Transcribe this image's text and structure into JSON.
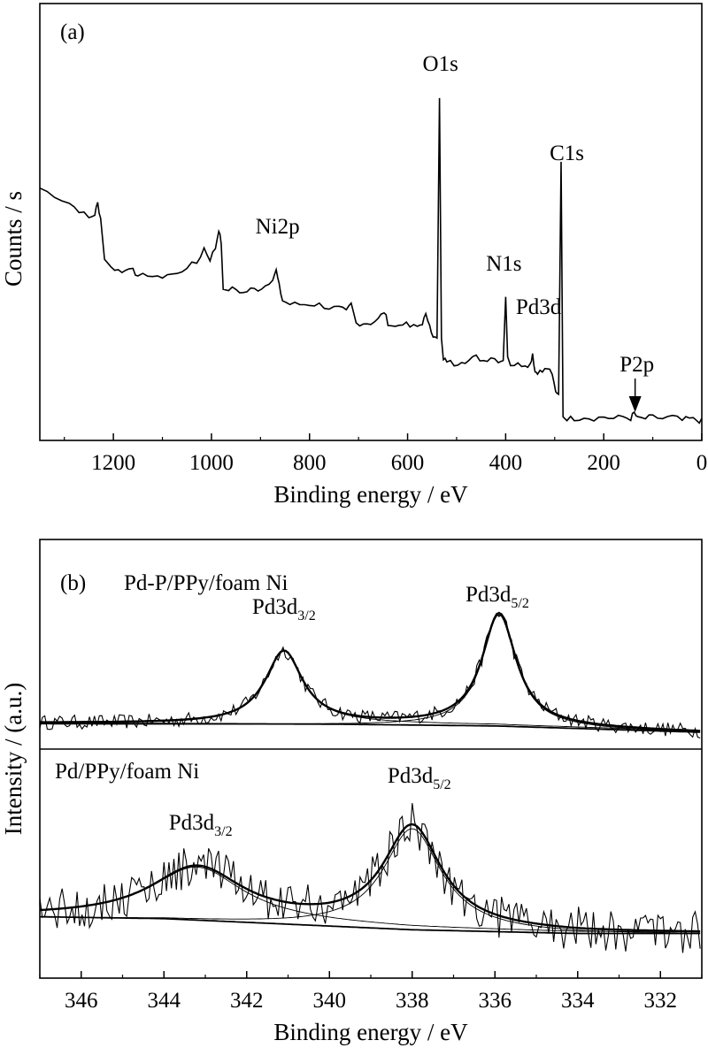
{
  "chart_data": [
    {
      "panel_label": "(a)",
      "type": "line",
      "xlabel": "Binding energy / eV",
      "ylabel": "Counts / s",
      "xlim": [
        1350,
        0
      ],
      "x_reversed": true,
      "x_ticks": [
        "1200",
        "1000",
        "800",
        "600",
        "400",
        "200",
        "0"
      ],
      "y_ticks_shown": false,
      "y_range_relative": [
        0,
        100
      ],
      "series": [
        {
          "points": [
            [
              1350,
              64
            ],
            [
              1320,
              62
            ],
            [
              1290,
              60
            ],
            [
              1270,
              58
            ],
            [
              1250,
              56
            ],
            [
              1238,
              57
            ],
            [
              1232,
              60
            ],
            [
              1226,
              56
            ],
            [
              1218,
              45
            ],
            [
              1205,
              43
            ],
            [
              1190,
              42
            ],
            [
              1175,
              42
            ],
            [
              1160,
              43
            ],
            [
              1150,
              40
            ],
            [
              1130,
              41
            ],
            [
              1110,
              40
            ],
            [
              1090,
              41
            ],
            [
              1070,
              41
            ],
            [
              1050,
              43
            ],
            [
              1030,
              44
            ],
            [
              1015,
              48
            ],
            [
              1003,
              45
            ],
            [
              992,
              48
            ],
            [
              985,
              53
            ],
            [
              980,
              49
            ],
            [
              976,
              37
            ],
            [
              965,
              37
            ],
            [
              950,
              37
            ],
            [
              935,
              36
            ],
            [
              920,
              37
            ],
            [
              905,
              37
            ],
            [
              890,
              38
            ],
            [
              875,
              40
            ],
            [
              868,
              42
            ],
            [
              862,
              38
            ],
            [
              855,
              34
            ],
            [
              840,
              33
            ],
            [
              820,
              33
            ],
            [
              800,
              33
            ],
            [
              780,
              33
            ],
            [
              760,
              32
            ],
            [
              740,
              32
            ],
            [
              725,
              31
            ],
            [
              715,
              33
            ],
            [
              705,
              28
            ],
            [
              690,
              28
            ],
            [
              675,
              28
            ],
            [
              660,
              29
            ],
            [
              648,
              31
            ],
            [
              640,
              28
            ],
            [
              625,
              27
            ],
            [
              610,
              28
            ],
            [
              595,
              27
            ],
            [
              580,
              27
            ],
            [
              570,
              28
            ],
            [
              563,
              30
            ],
            [
              555,
              28
            ],
            [
              548,
              24
            ],
            [
              540,
              24
            ],
            [
              535,
              88
            ],
            [
              531,
              24
            ],
            [
              527,
              18
            ],
            [
              520,
              18
            ],
            [
              505,
              17
            ],
            [
              490,
              18
            ],
            [
              475,
              18
            ],
            [
              460,
              19
            ],
            [
              445,
              18
            ],
            [
              430,
              19
            ],
            [
              415,
              18
            ],
            [
              405,
              18
            ],
            [
              400,
              35
            ],
            [
              396,
              19
            ],
            [
              390,
              17
            ],
            [
              375,
              17
            ],
            [
              360,
              17
            ],
            [
              350,
              17
            ],
            [
              345,
              20
            ],
            [
              340,
              15
            ],
            [
              335,
              15
            ],
            [
              325,
              15
            ],
            [
              315,
              16
            ],
            [
              305,
              14
            ],
            [
              298,
              10
            ],
            [
              292,
              9
            ],
            [
              287,
              71
            ],
            [
              283,
              3
            ],
            [
              275,
              2.5
            ],
            [
              260,
              2.5
            ],
            [
              240,
              3
            ],
            [
              220,
              2.5
            ],
            [
              200,
              3
            ],
            [
              180,
              2.5
            ],
            [
              160,
              3
            ],
            [
              145,
              2.5
            ],
            [
              138,
              4
            ],
            [
              130,
              2.5
            ],
            [
              115,
              2.5
            ],
            [
              100,
              3
            ],
            [
              80,
              2.5
            ],
            [
              60,
              3
            ],
            [
              40,
              2
            ],
            [
              25,
              2.5
            ],
            [
              10,
              2
            ],
            [
              0,
              2
            ]
          ]
        }
      ],
      "annotations": [
        {
          "text": "O1s",
          "x": 533
        },
        {
          "text": "C1s",
          "x": 286
        },
        {
          "text": "Ni2p",
          "x": 858
        },
        {
          "text": "N1s",
          "x": 400
        },
        {
          "text": "Pd3d",
          "x": 340
        },
        {
          "text": "P2p",
          "x": 136,
          "arrow": true
        }
      ]
    },
    {
      "panel_label": "(b)",
      "type": "line",
      "xlabel": "Binding energy / eV",
      "ylabel": "Intensity / (a.u.)",
      "xlim": [
        347,
        331
      ],
      "x_reversed": true,
      "x_ticks": [
        "346",
        "344",
        "342",
        "340",
        "338",
        "336",
        "334",
        "332"
      ],
      "y_ticks_shown": false,
      "subpanels": [
        {
          "name": "Pd-P/PPy/foam Ni",
          "peaks": [
            {
              "label_main": "Pd3d",
              "label_sub": "3/2",
              "center": 341.1,
              "height": 40,
              "width": 0.55
            },
            {
              "label_main": "Pd3d",
              "label_sub": "5/2",
              "center": 335.9,
              "height": 62,
              "width": 0.5
            }
          ],
          "background": [
            [
              347,
              5
            ],
            [
              340,
              4.5
            ],
            [
              336,
              3.5
            ],
            [
              331,
              0
            ]
          ]
        },
        {
          "name": "Pd/PPy/foam Ni",
          "peaks": [
            {
              "label_main": "Pd3d",
              "label_sub": "3/2",
              "center": 343.2,
              "height": 28,
              "width": 1.35
            },
            {
              "label_main": "Pd3d",
              "label_sub": "5/2",
              "center": 338.0,
              "height": 55,
              "width": 0.85
            }
          ],
          "background": [
            [
              347,
              14
            ],
            [
              344,
              13
            ],
            [
              341,
              10
            ],
            [
              338,
              7
            ],
            [
              334,
              5
            ],
            [
              331,
              5
            ]
          ]
        }
      ]
    }
  ]
}
